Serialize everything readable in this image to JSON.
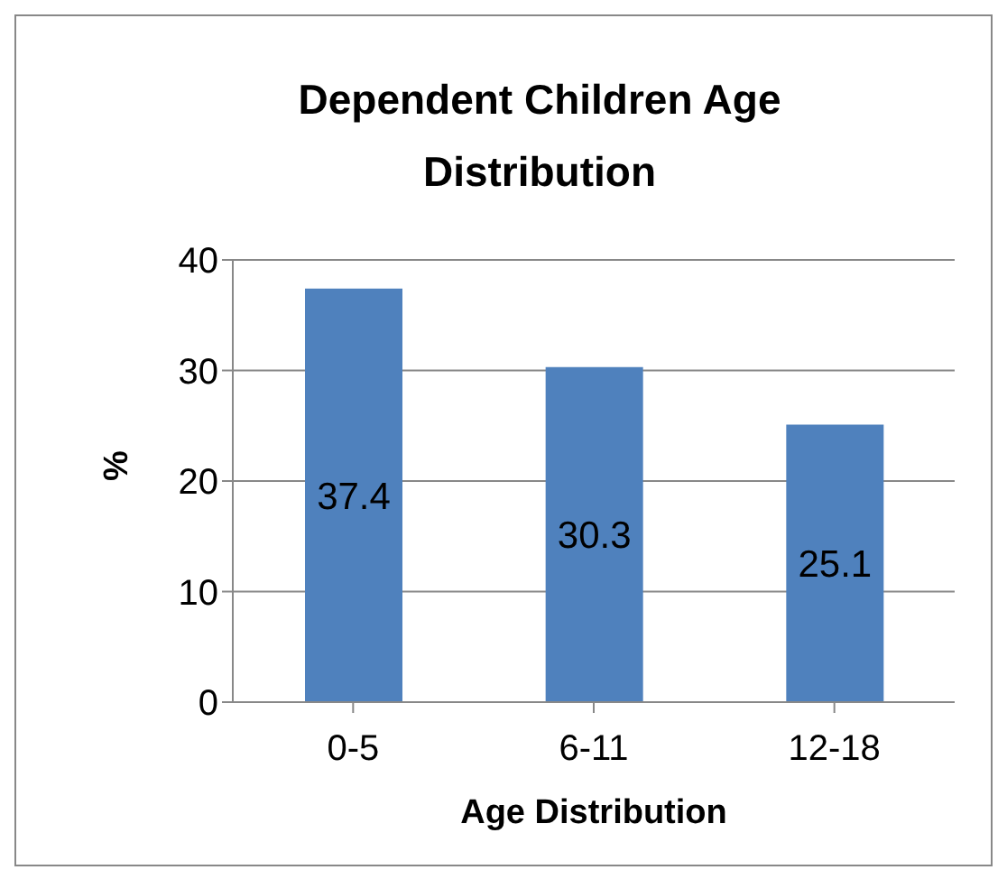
{
  "chart_data": {
    "type": "bar",
    "title": "Dependent Children Age Distribution",
    "xlabel": "Age Distribution",
    "ylabel": "%",
    "categories": [
      "0-5",
      "6-11",
      "12-18"
    ],
    "values": [
      37.4,
      30.3,
      25.1
    ],
    "color": "#4f81bd",
    "ylim": [
      0,
      40
    ],
    "yticks": [
      0,
      10,
      20,
      30,
      40
    ],
    "grid": "y",
    "data_labels": true
  }
}
